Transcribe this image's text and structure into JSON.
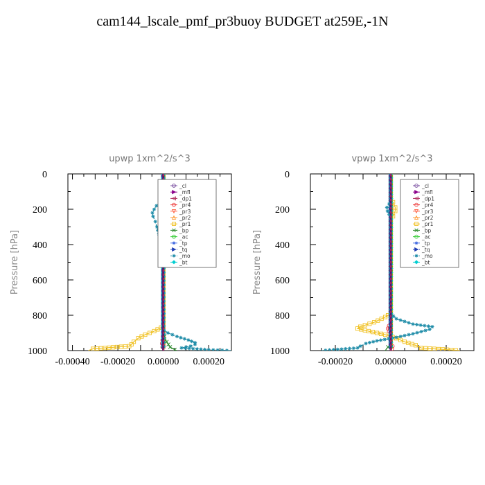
{
  "title": "cam144_lscale_pmf_pr3buoy  BUDGET at259E,-1N",
  "chart_data": [
    {
      "type": "line",
      "title": "upwp   1xm^2/s^3",
      "ylabel": "Pressure [hPa]",
      "xlabel": "",
      "ylim": [
        1000,
        0
      ],
      "xlim": [
        -0.00042,
        0.0003
      ],
      "yticks": [
        "0",
        "200",
        "400",
        "600",
        "800",
        "1000"
      ],
      "xticks": [
        "-0.00040",
        "-0.00020",
        "0.00000",
        "0.00020"
      ],
      "xtick_values": [
        -0.0004,
        -0.0002,
        0,
        0.0002
      ],
      "legend_position": "top-right",
      "series": [
        {
          "name": "_cl",
          "color": "#7a4fa0",
          "marker": "circle",
          "dashed": false,
          "points": [
            [
              0,
              0
            ],
            [
              0,
              1000
            ]
          ]
        },
        {
          "name": "_mfl",
          "color": "#8b008b",
          "marker": "tri-right",
          "dashed": false,
          "points": [
            [
              0,
              0
            ],
            [
              0,
              1000
            ]
          ]
        },
        {
          "name": "_dp1",
          "color": "#b03060",
          "marker": "tri-left",
          "dashed": false,
          "points": [
            [
              0,
              0
            ],
            [
              0,
              1000
            ]
          ]
        },
        {
          "name": "_pr4",
          "color": "#ee4040",
          "marker": "circle",
          "dashed": false,
          "points": [
            [
              0,
              0
            ],
            [
              0,
              900
            ],
            [
              -3e-06,
              940
            ],
            [
              -5e-06,
              960
            ],
            [
              -3e-06,
              980
            ],
            [
              0,
              1000
            ]
          ]
        },
        {
          "name": "_pr3",
          "color": "#ff6347",
          "marker": "tri-down",
          "dashed": false,
          "points": [
            [
              0,
              0
            ],
            [
              0,
              1000
            ]
          ]
        },
        {
          "name": "_pr2",
          "color": "#ff9933",
          "marker": "tri-up",
          "dashed": false,
          "points": [
            [
              0,
              0
            ],
            [
              0,
              1000
            ]
          ]
        },
        {
          "name": "_pr1",
          "color": "#f0c020",
          "marker": "square",
          "dashed": false,
          "points": [
            [
              0,
              0
            ],
            [
              2e-06,
              100
            ],
            [
              -4e-06,
              120
            ],
            [
              4e-06,
              140
            ],
            [
              1.2e-05,
              170
            ],
            [
              2.8e-05,
              200
            ],
            [
              3.4e-05,
              220
            ],
            [
              3.6e-05,
              250
            ],
            [
              3.2e-05,
              280
            ],
            [
              2.4e-05,
              320
            ],
            [
              1.8e-05,
              360
            ],
            [
              1.2e-05,
              400
            ],
            [
              6e-06,
              430
            ],
            [
              0,
              450
            ],
            [
              0,
              850
            ],
            [
              -1e-05,
              870
            ],
            [
              -4e-05,
              890
            ],
            [
              -8e-05,
              910
            ],
            [
              -0.00011,
              930
            ],
            [
              -0.00013,
              950
            ],
            [
              -0.00014,
              965
            ],
            [
              -0.00015,
              975
            ],
            [
              -0.00031,
              990
            ],
            [
              -0.00033,
              1000
            ]
          ]
        },
        {
          "name": "_bp",
          "color": "#2e8b2e",
          "marker": "x",
          "dashed": false,
          "points": [
            [
              0,
              0
            ],
            [
              0,
              900
            ],
            [
              5e-06,
              920
            ],
            [
              1.5e-05,
              950
            ],
            [
              3e-05,
              980
            ],
            [
              5e-05,
              995
            ],
            [
              6e-05,
              1000
            ]
          ]
        },
        {
          "name": "_ac",
          "color": "#32cd32",
          "marker": "circle",
          "dashed": false,
          "points": [
            [
              0,
              0
            ],
            [
              0,
              1000
            ]
          ]
        },
        {
          "name": "_tp",
          "color": "#4169e1",
          "marker": "asterisk",
          "dashed": false,
          "points": [
            [
              0,
              0
            ],
            [
              0,
              1000
            ]
          ]
        },
        {
          "name": "_tq",
          "color": "#1e3cb4",
          "marker": "tri-right",
          "dashed": true,
          "points": [
            [
              0,
              0
            ],
            [
              0,
              1000
            ]
          ]
        },
        {
          "name": "_mo",
          "color": "#1e8ca8",
          "marker": "asterisk",
          "dashed": true,
          "points": [
            [
              0,
              0
            ],
            [
              0,
              100
            ],
            [
              -4e-06,
              130
            ],
            [
              -1.5e-05,
              160
            ],
            [
              -3e-05,
              180
            ],
            [
              -4e-05,
              200
            ],
            [
              -4.8e-05,
              220
            ],
            [
              -4.5e-05,
              240
            ],
            [
              -3.5e-05,
              270
            ],
            [
              -2.8e-05,
              300
            ],
            [
              -2e-05,
              340
            ],
            [
              -1.2e-05,
              380
            ],
            [
              -6e-06,
              420
            ],
            [
              0,
              460
            ],
            [
              0,
              880
            ],
            [
              2e-05,
              900
            ],
            [
              6e-05,
              920
            ],
            [
              0.00011,
              940
            ],
            [
              0.00014,
              955
            ],
            [
              0.00014,
              965
            ],
            [
              0.00012,
              975
            ],
            [
              8e-05,
              985
            ],
            [
              0.0002,
              995
            ],
            [
              0.0003,
              1000
            ]
          ]
        },
        {
          "name": "_bt",
          "color": "#00ced1",
          "marker": "diamond",
          "dashed": false,
          "points": [
            [
              0,
              0
            ],
            [
              0,
              1000
            ]
          ]
        }
      ]
    },
    {
      "type": "line",
      "title": "vpwp   1xm^2/s^3",
      "ylabel": "Pressure [hPa]",
      "xlabel": "",
      "ylim": [
        1000,
        0
      ],
      "xlim": [
        -0.00029,
        0.0003
      ],
      "yticks": [
        "0",
        "200",
        "400",
        "600",
        "800",
        "1000"
      ],
      "xticks": [
        "-0.00020",
        "0.00000",
        "0.00020"
      ],
      "xtick_values": [
        -0.0002,
        0,
        0.0002
      ],
      "legend_position": "top-right",
      "series": [
        {
          "name": "_cl",
          "color": "#7a4fa0",
          "marker": "circle",
          "dashed": false,
          "points": [
            [
              0,
              0
            ],
            [
              0,
              1000
            ]
          ]
        },
        {
          "name": "_mfl",
          "color": "#8b008b",
          "marker": "tri-right",
          "dashed": false,
          "points": [
            [
              0,
              0
            ],
            [
              0,
              1000
            ]
          ]
        },
        {
          "name": "_dp1",
          "color": "#b03060",
          "marker": "tri-left",
          "dashed": false,
          "points": [
            [
              0,
              0
            ],
            [
              0,
              1000
            ]
          ]
        },
        {
          "name": "_pr4",
          "color": "#ee4040",
          "marker": "circle",
          "dashed": false,
          "points": [
            [
              0,
              0
            ],
            [
              0,
              840
            ],
            [
              -6e-06,
              860
            ],
            [
              -1e-05,
              875
            ],
            [
              -6e-06,
              890
            ],
            [
              0,
              900
            ],
            [
              0,
              960
            ],
            [
              6e-06,
              975
            ],
            [
              4e-06,
              990
            ],
            [
              0,
              1000
            ]
          ]
        },
        {
          "name": "_pr3",
          "color": "#ff6347",
          "marker": "tri-down",
          "dashed": false,
          "points": [
            [
              0,
              0
            ],
            [
              0,
              1000
            ]
          ]
        },
        {
          "name": "_pr2",
          "color": "#ff9933",
          "marker": "tri-up",
          "dashed": false,
          "points": [
            [
              0,
              0
            ],
            [
              0,
              1000
            ]
          ]
        },
        {
          "name": "_pr1",
          "color": "#f0c020",
          "marker": "square",
          "dashed": false,
          "points": [
            [
              0,
              0
            ],
            [
              0,
              140
            ],
            [
              8e-06,
              160
            ],
            [
              1.6e-05,
              190
            ],
            [
              1.6e-05,
              210
            ],
            [
              8e-06,
              240
            ],
            [
              0,
              260
            ],
            [
              0,
              790
            ],
            [
              -2e-05,
              810
            ],
            [
              -6e-05,
              840
            ],
            [
              -0.00011,
              865
            ],
            [
              -0.00012,
              875
            ],
            [
              -8e-05,
              890
            ],
            [
              -2e-05,
              910
            ],
            [
              2e-05,
              930
            ],
            [
              5e-05,
              950
            ],
            [
              9e-05,
              970
            ],
            [
              0.00011,
              985
            ],
            [
              0.00025,
              1000
            ]
          ]
        },
        {
          "name": "_bp",
          "color": "#2e8b2e",
          "marker": "x",
          "dashed": false,
          "points": [
            [
              0,
              0
            ],
            [
              0,
              960
            ],
            [
              -1e-05,
              980
            ],
            [
              -2e-05,
              1000
            ]
          ]
        },
        {
          "name": "_ac",
          "color": "#32cd32",
          "marker": "circle",
          "dashed": false,
          "points": [
            [
              0,
              0
            ],
            [
              0,
              1000
            ]
          ]
        },
        {
          "name": "_tp",
          "color": "#4169e1",
          "marker": "asterisk",
          "dashed": false,
          "points": [
            [
              0,
              0
            ],
            [
              0,
              1000
            ]
          ]
        },
        {
          "name": "_tq",
          "color": "#1e3cb4",
          "marker": "tri-right",
          "dashed": true,
          "points": [
            [
              0,
              0
            ],
            [
              0,
              1000
            ]
          ]
        },
        {
          "name": "_mo",
          "color": "#1e8ca8",
          "marker": "asterisk",
          "dashed": true,
          "points": [
            [
              0,
              0
            ],
            [
              0,
              150
            ],
            [
              -6e-06,
              170
            ],
            [
              -1.4e-05,
              190
            ],
            [
              -1.2e-05,
              210
            ],
            [
              -6e-06,
              230
            ],
            [
              0,
              260
            ],
            [
              0,
              790
            ],
            [
              2e-05,
              820
            ],
            [
              8e-05,
              850
            ],
            [
              0.00015,
              865
            ],
            [
              0.00014,
              880
            ],
            [
              8e-05,
              905
            ],
            [
              2e-05,
              925
            ],
            [
              -5e-05,
              945
            ],
            [
              -9e-05,
              960
            ],
            [
              -0.00011,
              975
            ],
            [
              -0.00012,
              985
            ],
            [
              -0.00025,
              1000
            ]
          ]
        },
        {
          "name": "_bt",
          "color": "#00ced1",
          "marker": "diamond",
          "dashed": false,
          "points": [
            [
              0,
              0
            ],
            [
              0,
              1000
            ]
          ]
        }
      ]
    }
  ]
}
